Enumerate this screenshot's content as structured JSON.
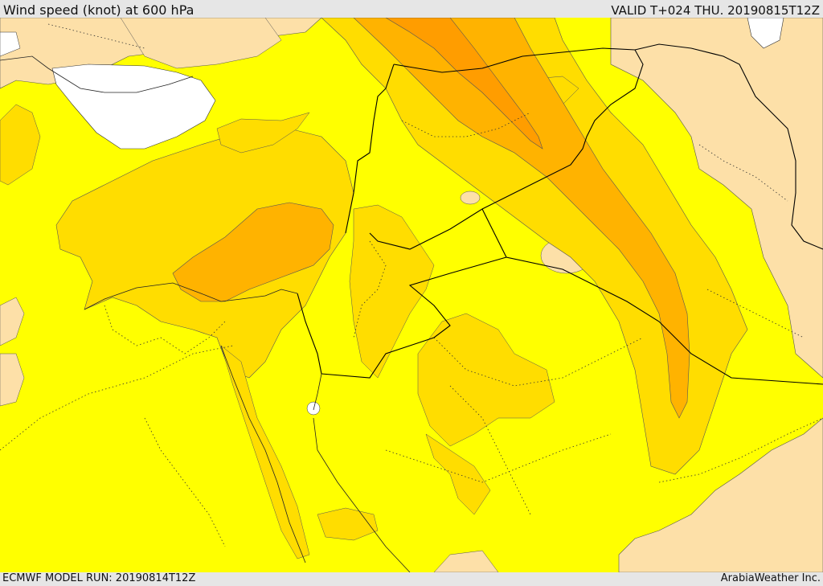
{
  "header": {
    "title": "Wind speed (knot) at 600 hPa",
    "valid": "VALID T+024 THU. 20190815T12Z"
  },
  "footer": {
    "model_run": "ECMWF MODEL RUN: 20190814T12Z",
    "credit": "ArabiaWeather Inc."
  },
  "colors": {
    "band_lowest": "#fde0a8",
    "band_low": "#ffff00",
    "band_mid": "#ffdd00",
    "band_high": "#ffb300",
    "band_highest": "#ff9d00",
    "water_white": "#ffffff",
    "border": "#000000"
  }
}
